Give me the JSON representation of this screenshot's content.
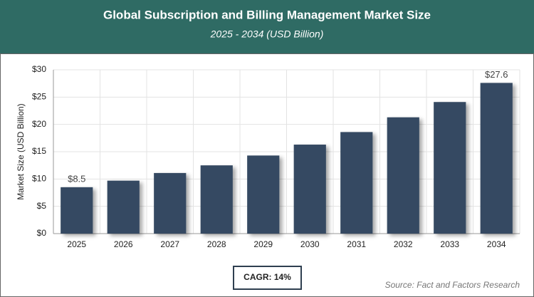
{
  "chart_data": {
    "type": "bar",
    "title": "Global Subscription and Billing Management Market Size",
    "subtitle": "2025 - 2034 (USD Billion)",
    "y_label": "Market Size (USD Billion)",
    "categories": [
      "2025",
      "2026",
      "2027",
      "2028",
      "2029",
      "2030",
      "2031",
      "2032",
      "2033",
      "2034"
    ],
    "values": [
      8.5,
      9.7,
      11.1,
      12.5,
      14.3,
      16.3,
      18.6,
      21.3,
      24.1,
      27.6
    ],
    "value_labels": [
      "$8.5",
      null,
      null,
      null,
      null,
      null,
      null,
      null,
      null,
      "$27.6"
    ],
    "color": "#354a62",
    "ylim": [
      0,
      30
    ],
    "yticks": [
      {
        "value": 0,
        "label": "$0"
      },
      {
        "value": 5,
        "label": "$5"
      },
      {
        "value": 10,
        "label": "$10"
      },
      {
        "value": 15,
        "label": "$15"
      },
      {
        "value": 20,
        "label": "$20"
      },
      {
        "value": 25,
        "label": "$25"
      },
      {
        "value": 30,
        "label": "$30"
      }
    ],
    "grid": true,
    "annotation": "CAGR: 14%",
    "source": "Source: Fact and Factors Research"
  }
}
